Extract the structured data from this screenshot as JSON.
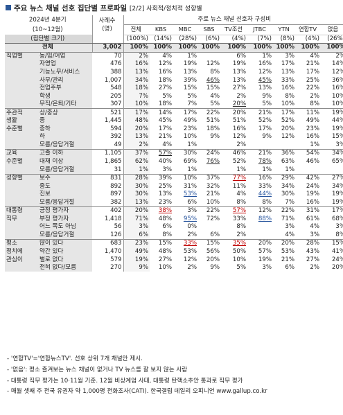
{
  "title": "주요 뉴스 채널 선호 집단별 프로파일",
  "title_sub": "[2/2] 사회적/정치적 성향별",
  "header": {
    "period": "2024년 4분기",
    "months": "(10~12월)",
    "group_size": "(집단별 크기)",
    "n_label_1": "사례수",
    "n_label_2": "(명)",
    "pref_label": "주로 뉴스 채널 선호자 구성비",
    "cols": [
      "전체",
      "KBS",
      "MBC",
      "SBS",
      "TV조선",
      "JTBC",
      "YTN",
      "연합TV",
      "없음"
    ],
    "shares": [
      "(100%)",
      "(14%)",
      "(28%)",
      "(6%)",
      "(4%)",
      "(7%)",
      "(8%)",
      "(4%)",
      "(26%)"
    ]
  },
  "total": {
    "label": "전체",
    "n": "3,002",
    "values": [
      "100%",
      "100%",
      "100%",
      "100%",
      "100%",
      "100%",
      "100%",
      "100%",
      "100%"
    ]
  },
  "rows": [
    {
      "g": "직업별",
      "s": "농/임/어업",
      "n": "70",
      "v": [
        "2%",
        "4%",
        "1%",
        "",
        "6%",
        "1%",
        "3%",
        "4%",
        "2%"
      ],
      "start": true
    },
    {
      "g": "",
      "s": "자영업",
      "n": "476",
      "v": [
        "16%",
        "12%",
        "19%",
        "12%",
        "19%",
        "16%",
        "17%",
        "21%",
        "14%"
      ]
    },
    {
      "g": "",
      "s": "기능노무/서비스",
      "n": "388",
      "v": [
        "13%",
        "16%",
        "13%",
        "8%",
        "13%",
        "12%",
        "13%",
        "17%",
        "12%"
      ]
    },
    {
      "g": "",
      "s": "사무/관리",
      "n": "1,007",
      "v": [
        "34%",
        "18%",
        "39%",
        "46%",
        "13%",
        "45%",
        "33%",
        "25%",
        "36%"
      ],
      "fmt": {
        "3": "u",
        "5": "u"
      }
    },
    {
      "g": "",
      "s": "전업주부",
      "n": "548",
      "v": [
        "18%",
        "27%",
        "15%",
        "15%",
        "27%",
        "13%",
        "16%",
        "22%",
        "16%"
      ]
    },
    {
      "g": "",
      "s": "학생",
      "n": "205",
      "v": [
        "7%",
        "5%",
        "5%",
        "4%",
        "2%",
        "9%",
        "8%",
        "2%",
        "10%"
      ]
    },
    {
      "g": "",
      "s": "무직/은퇴/기타",
      "n": "307",
      "v": [
        "10%",
        "18%",
        "7%",
        "5%",
        "20%",
        "5%",
        "10%",
        "8%",
        "10%"
      ],
      "fmt": {
        "4": "u"
      }
    },
    {
      "g": "주관적",
      "s": "상/중상",
      "n": "521",
      "v": [
        "17%",
        "14%",
        "17%",
        "22%",
        "20%",
        "21%",
        "17%",
        "11%",
        "19%"
      ],
      "start": true
    },
    {
      "g": "생활",
      "s": "중",
      "n": "1,445",
      "v": [
        "48%",
        "45%",
        "49%",
        "51%",
        "51%",
        "52%",
        "52%",
        "49%",
        "44%"
      ]
    },
    {
      "g": "수준별",
      "s": "중하",
      "n": "594",
      "v": [
        "20%",
        "17%",
        "23%",
        "18%",
        "16%",
        "17%",
        "20%",
        "23%",
        "19%"
      ]
    },
    {
      "g": "",
      "s": "하",
      "n": "392",
      "v": [
        "13%",
        "21%",
        "10%",
        "9%",
        "12%",
        "9%",
        "12%",
        "16%",
        "15%"
      ]
    },
    {
      "g": "",
      "s": "모름/응답거절",
      "n": "49",
      "v": [
        "2%",
        "4%",
        "1%",
        "",
        "2%",
        "",
        "",
        "1%",
        "3%"
      ]
    },
    {
      "g": "교육",
      "s": "고졸 이하",
      "n": "1,105",
      "v": [
        "37%",
        "57%",
        "30%",
        "24%",
        "46%",
        "21%",
        "36%",
        "54%",
        "34%"
      ],
      "fmt": {
        "1": "u"
      },
      "start": true
    },
    {
      "g": "수준별",
      "s": "대재 이상",
      "n": "1,865",
      "v": [
        "62%",
        "40%",
        "69%",
        "76%",
        "52%",
        "78%",
        "63%",
        "46%",
        "65%"
      ],
      "fmt": {
        "3": "u",
        "5": "u"
      }
    },
    {
      "g": "",
      "s": "모름/응답거절",
      "n": "31",
      "v": [
        "1%",
        "3%",
        "1%",
        "",
        "1%",
        "1%",
        "1%",
        "",
        ""
      ]
    },
    {
      "g": "성향별",
      "s": "보수",
      "n": "831",
      "v": [
        "28%",
        "39%",
        "10%",
        "37%",
        "77%",
        "16%",
        "29%",
        "42%",
        "27%"
      ],
      "fmt": {
        "4": "red"
      },
      "start": true
    },
    {
      "g": "",
      "s": "중도",
      "n": "892",
      "v": [
        "30%",
        "25%",
        "31%",
        "32%",
        "11%",
        "33%",
        "34%",
        "24%",
        "34%"
      ]
    },
    {
      "g": "",
      "s": "진보",
      "n": "897",
      "v": [
        "30%",
        "13%",
        "53%",
        "21%",
        "4%",
        "44%",
        "30%",
        "19%",
        "19%"
      ],
      "fmt": {
        "2": "blue",
        "5": "blue"
      }
    },
    {
      "g": "",
      "s": "모름/응답거절",
      "n": "382",
      "v": [
        "13%",
        "23%",
        "6%",
        "10%",
        "8%",
        "8%",
        "7%",
        "16%",
        "19%"
      ]
    },
    {
      "g": "대통령",
      "s": "긍정 평가자",
      "n": "402",
      "v": [
        "20%",
        "38%",
        "3%",
        "22%",
        "57%",
        "12%",
        "22%",
        "31%",
        "17%"
      ],
      "fmt": {
        "1": "red",
        "4": "red"
      },
      "start": true
    },
    {
      "g": "직무",
      "s": "부정 평가자",
      "n": "1,418",
      "v": [
        "71%",
        "48%",
        "95%",
        "72%",
        "33%",
        "88%",
        "71%",
        "61%",
        "68%"
      ],
      "fmt": {
        "2": "blue",
        "5": "blue"
      }
    },
    {
      "g": "",
      "s": "어느 쪽도 아님",
      "n": "56",
      "v": [
        "3%",
        "6%",
        "0%",
        "",
        "8%",
        "",
        "3%",
        "4%",
        "3%"
      ]
    },
    {
      "g": "",
      "s": "모름/응답거절",
      "n": "126",
      "v": [
        "6%",
        "8%",
        "2%",
        "6%",
        "2%",
        "",
        "4%",
        "3%",
        "8%"
      ]
    },
    {
      "g": "평소",
      "s": "많이 있다",
      "n": "683",
      "v": [
        "23%",
        "15%",
        "33%",
        "15%",
        "35%",
        "20%",
        "20%",
        "28%",
        "15%"
      ],
      "fmt": {
        "2": "red",
        "4": "red"
      },
      "start": true
    },
    {
      "g": "정치에",
      "s": "약간 있다",
      "n": "1,470",
      "v": [
        "49%",
        "48%",
        "53%",
        "56%",
        "50%",
        "57%",
        "53%",
        "43%",
        "41%"
      ]
    },
    {
      "g": "관심이",
      "s": "별로 없다",
      "n": "579",
      "v": [
        "19%",
        "27%",
        "12%",
        "20%",
        "10%",
        "19%",
        "21%",
        "27%",
        "24%"
      ]
    },
    {
      "g": "",
      "s": "전혀 없다/모름",
      "n": "270",
      "v": [
        "9%",
        "10%",
        "2%",
        "9%",
        "5%",
        "3%",
        "6%",
        "2%",
        "20%"
      ]
    }
  ],
  "notes": [
    "- '연합TV'='연합뉴스TV'. 선호 상위 7개 채널만 제시.",
    "- '없음': 평소 즐겨보는 뉴스 채널이 없거나 TV 뉴스를 잘 보지 않는 사람",
    "- 대통령 직무 평가는 10·11월 기준. 12월 비상계엄 사태, 대통령 탄핵소추안 통과로 직무 평가",
    "- 매월 셋째 주 전국 유권자 약 1,000명 전화조사(CATI). 한국갤럽 데일리 오피니언 www.gallup.co.kr"
  ]
}
